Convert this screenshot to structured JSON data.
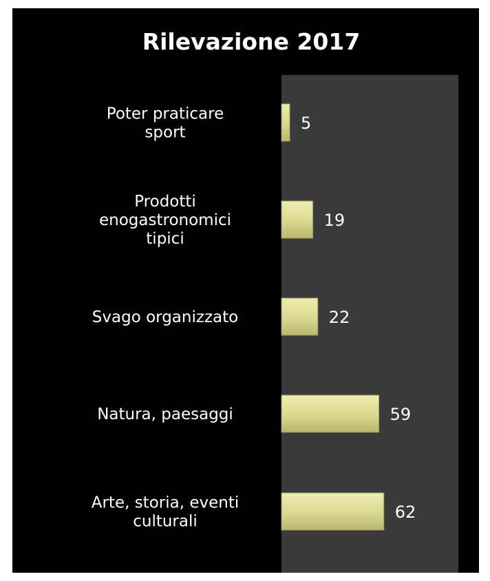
{
  "chart_data": {
    "type": "bar",
    "orientation": "horizontal",
    "title": "Rilevazione 2017",
    "categories": [
      [
        "Poter praticare",
        "sport"
      ],
      [
        "Prodotti",
        "enogastronomici",
        "tipici"
      ],
      [
        "Svago organizzato"
      ],
      [
        "Natura, paesaggi"
      ],
      [
        "Arte, storia, eventi",
        "culturali"
      ]
    ],
    "values": [
      5,
      19,
      22,
      59,
      62
    ],
    "value_labels": [
      "5",
      "19",
      "22",
      "59",
      "62"
    ],
    "xlim": [
      0,
      100
    ],
    "grid": false,
    "legend": "none"
  },
  "colors": {
    "background": "#000000",
    "plot_area": "#3a3a3a",
    "bar_fill": "#dedd98",
    "bar_stroke": "#9a9a5c",
    "text": "#ffffff"
  }
}
